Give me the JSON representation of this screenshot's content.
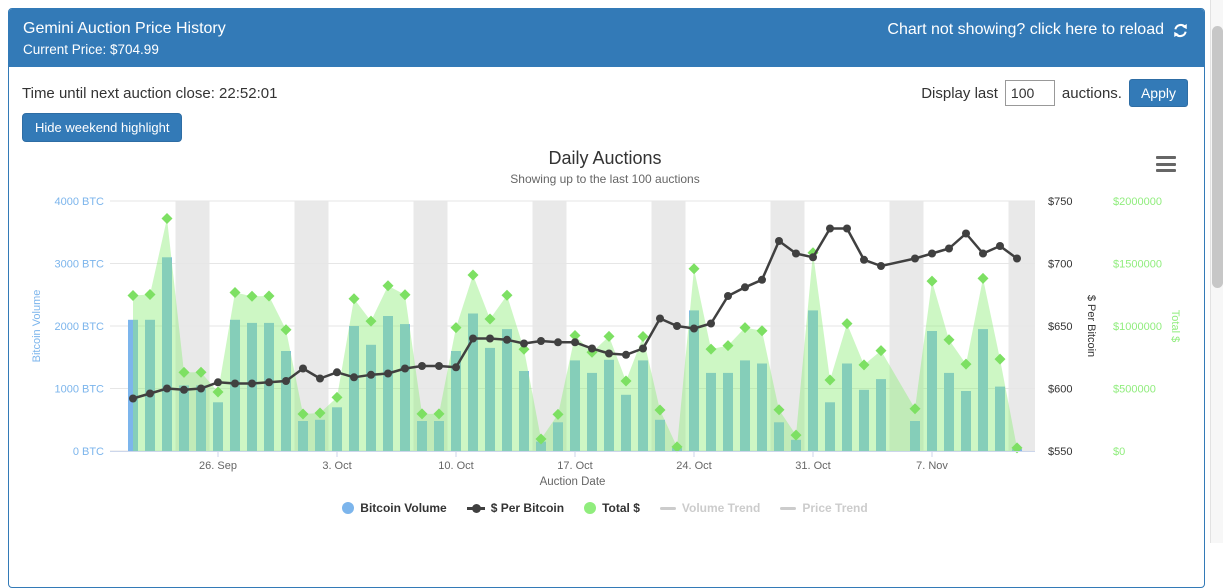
{
  "header": {
    "title": "Gemini Auction Price History",
    "subtitle": "Current Price: $704.99",
    "reload_label": "Chart not showing? click here to reload"
  },
  "toolbar": {
    "countdown": "Time until next auction close: 22:52:01",
    "display_last_label": "Display last",
    "auctions_value": "100",
    "auctions_suffix": "auctions.",
    "apply_label": "Apply",
    "hide_weekend_label": "Hide weekend highlight"
  },
  "legend": {
    "items": [
      {
        "label": "Bitcoin Volume",
        "marker": "circle",
        "color": "#7cb5ec",
        "active": true
      },
      {
        "label": "$ Per Bitcoin",
        "marker": "line-dot",
        "color": "#404040",
        "active": true
      },
      {
        "label": "Total $",
        "marker": "circle",
        "color": "#90ed7d",
        "active": true
      },
      {
        "label": "Volume Trend",
        "marker": "line",
        "color": "#cccccc",
        "active": false
      },
      {
        "label": "Price Trend",
        "marker": "line",
        "color": "#cccccc",
        "active": false
      }
    ]
  },
  "chart_data": {
    "type": "combo",
    "title": "Daily Auctions",
    "subtitle": "Showing up to the last 100 auctions",
    "xlabel": "Auction Date",
    "x_ticks": [
      "26. Sep",
      "3. Oct",
      "10. Oct",
      "17. Oct",
      "24. Oct",
      "31. Oct",
      "7. Nov"
    ],
    "tick_indices": [
      5,
      12,
      19,
      26,
      33,
      40,
      47
    ],
    "dates": [
      "21 Sep",
      "22 Sep",
      "23 Sep",
      "24 Sep",
      "25 Sep",
      "26 Sep",
      "27 Sep",
      "28 Sep",
      "29 Sep",
      "30 Sep",
      "1 Oct",
      "2 Oct",
      "3 Oct",
      "4 Oct",
      "5 Oct",
      "6 Oct",
      "7 Oct",
      "8 Oct",
      "9 Oct",
      "10 Oct",
      "11 Oct",
      "12 Oct",
      "13 Oct",
      "14 Oct",
      "15 Oct",
      "16 Oct",
      "17 Oct",
      "18 Oct",
      "19 Oct",
      "20 Oct",
      "21 Oct",
      "22 Oct",
      "23 Oct",
      "24 Oct",
      "25 Oct",
      "26 Oct",
      "27 Oct",
      "28 Oct",
      "29 Oct",
      "30 Oct",
      "31 Oct",
      "1 Nov",
      "2 Nov",
      "3 Nov",
      "4 Nov",
      "5 Nov",
      "6 Nov",
      "7 Nov",
      "8 Nov",
      "9 Nov",
      "10 Nov",
      "11 Nov",
      "12 Nov"
    ],
    "weekend_spans": [
      [
        3,
        4
      ],
      [
        10,
        11
      ],
      [
        17,
        18
      ],
      [
        24,
        25
      ],
      [
        31,
        32
      ],
      [
        38,
        39
      ],
      [
        45,
        46
      ],
      [
        52,
        52
      ]
    ],
    "series": [
      {
        "name": "Bitcoin Volume",
        "type": "column",
        "axis": "volume",
        "color": "#7cb5ec",
        "values": [
          2100,
          2100,
          3100,
          1050,
          1050,
          780,
          2100,
          2050,
          2050,
          1600,
          480,
          500,
          700,
          2000,
          1700,
          2160,
          2030,
          480,
          480,
          1600,
          2200,
          1650,
          1950,
          1280,
          150,
          460,
          1450,
          1250,
          1460,
          900,
          1450,
          500,
          50,
          2250,
          1250,
          1250,
          1450,
          1400,
          460,
          180,
          2250,
          780,
          1400,
          980,
          1150,
          null,
          480,
          1920,
          1250,
          960,
          1950,
          1030,
          30
        ]
      },
      {
        "name": "$ Per Bitcoin",
        "type": "line",
        "axis": "price",
        "color": "#404040",
        "values": [
          592,
          596,
          600,
          599,
          600,
          605,
          604,
          604,
          605,
          606,
          616,
          608,
          613,
          609,
          611,
          612,
          616,
          618,
          618,
          617,
          640,
          640,
          639,
          636,
          638,
          637,
          637,
          632,
          628,
          627,
          632,
          656,
          650,
          648,
          652,
          674,
          681,
          687,
          718,
          708,
          705,
          728,
          728,
          703,
          698,
          null,
          704,
          708,
          712,
          724,
          708,
          714,
          704
        ]
      },
      {
        "name": "Total $",
        "type": "area",
        "axis": "total",
        "color": "#90ed7d",
        "marker_color": "#7de063",
        "values": [
          1244000,
          1252000,
          1860000,
          629000,
          630000,
          472000,
          1268000,
          1238000,
          1240000,
          970000,
          296000,
          304000,
          429000,
          1218000,
          1039000,
          1322000,
          1250000,
          297000,
          297000,
          987000,
          1408000,
          1056000,
          1246000,
          814000,
          96000,
          293000,
          924000,
          790000,
          917000,
          560000,
          916000,
          328000,
          33000,
          1458000,
          815000,
          843000,
          987000,
          962000,
          330000,
          127000,
          1586000,
          568000,
          1019000,
          689000,
          803000,
          null,
          338000,
          1359000,
          890000,
          695000,
          1381000,
          735000,
          25000
        ]
      }
    ],
    "axes": {
      "volume": {
        "title": "Bitcoin Volume",
        "min": 0,
        "max": 4000,
        "color": "#7cb5ec",
        "ticks": [
          "0 BTC",
          "1000 BTC",
          "2000 BTC",
          "3000 BTC",
          "4000 BTC"
        ]
      },
      "price": {
        "title": "$ Per Bitcoin",
        "min": 550,
        "max": 750,
        "color": "#333333",
        "ticks": [
          "$550",
          "$600",
          "$650",
          "$700",
          "$750"
        ]
      },
      "total": {
        "title": "Total $",
        "min": 0,
        "max": 2000000,
        "color": "#90ed7d",
        "ticks": [
          "$0",
          "$500000",
          "$1000000",
          "$1500000",
          "$2000000"
        ]
      }
    },
    "colors": {
      "area_fill": "rgba(144,237,125,0.45)",
      "weekend_band": "#e9e9e9",
      "grid": "#e6e6e6",
      "axis_line": "#ccd6eb",
      "tick_label": "#666666"
    },
    "legend_position": "bottom",
    "grid": true
  }
}
